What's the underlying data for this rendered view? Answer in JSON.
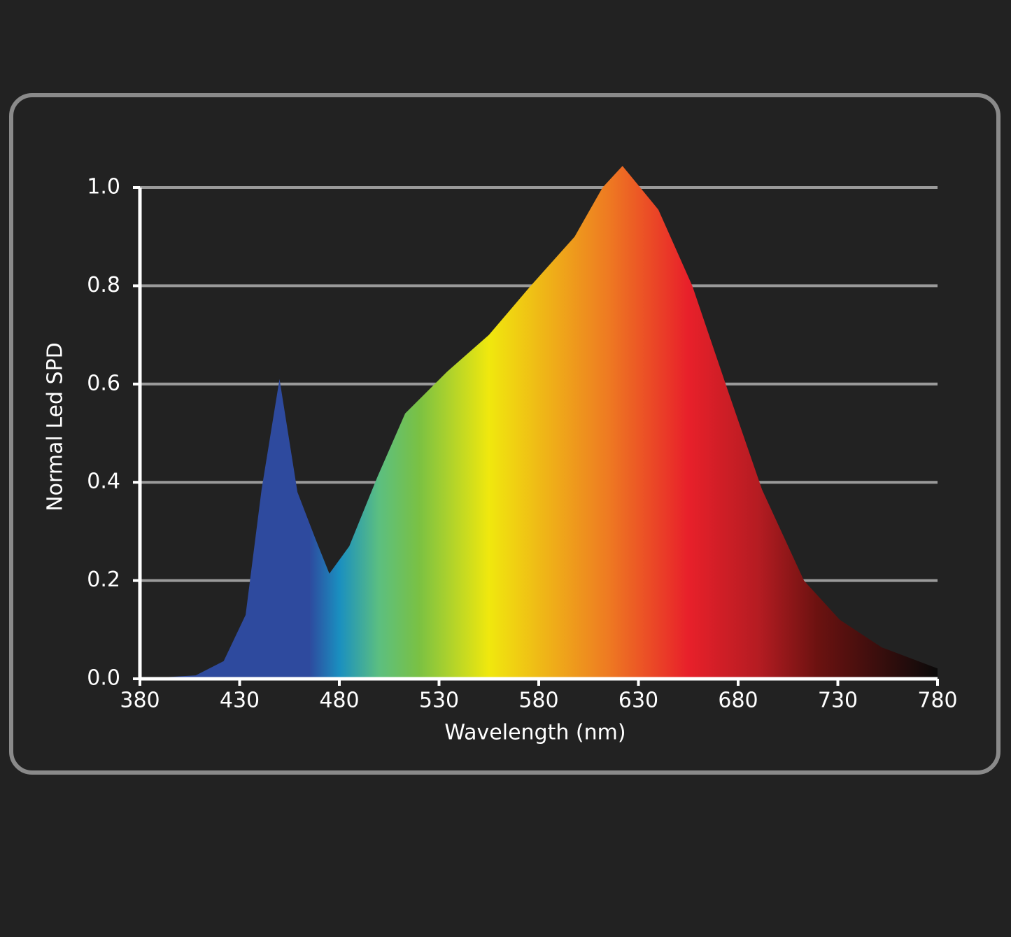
{
  "chart_data": {
    "type": "area",
    "x_label": "Wavelength (nm)",
    "y_label": "Normal Led SPD",
    "x": [
      380,
      408,
      422,
      433,
      441,
      450,
      459,
      468,
      475,
      485,
      499,
      513,
      534,
      555,
      576,
      598,
      612,
      622,
      640,
      657,
      675,
      692,
      713,
      731,
      752,
      780
    ],
    "values": [
      0,
      0.007,
      0.036,
      0.13,
      0.385,
      0.61,
      0.38,
      0.285,
      0.214,
      0.27,
      0.41,
      0.54,
      0.625,
      0.7,
      0.8,
      0.9,
      1.0,
      1.044,
      0.955,
      0.8,
      0.585,
      0.385,
      0.2,
      0.12,
      0.064,
      0.021
    ],
    "xlim": [
      380,
      780
    ],
    "xticks": [
      380,
      430,
      480,
      530,
      580,
      630,
      680,
      730,
      780
    ],
    "ylim": [
      0,
      1
    ],
    "yticks": [
      {
        "value": 0,
        "label": "0.0"
      },
      0.2,
      0.4,
      0.6,
      0.8,
      {
        "value": 1,
        "label": "1.0"
      }
    ],
    "grid": true,
    "fill_gradient": [
      [
        380,
        "#2e4a9e"
      ],
      [
        465,
        "#2e4a9e"
      ],
      [
        480,
        "#1a8fc0"
      ],
      [
        500,
        "#5cbf80"
      ],
      [
        520,
        "#7ac143"
      ],
      [
        555,
        "#f0e80e"
      ],
      [
        615,
        "#ee7a22"
      ],
      [
        655,
        "#e8202a"
      ],
      [
        690,
        "#b51c22"
      ],
      [
        720,
        "#6b1210"
      ],
      [
        780,
        "#0a0a0a"
      ]
    ]
  }
}
